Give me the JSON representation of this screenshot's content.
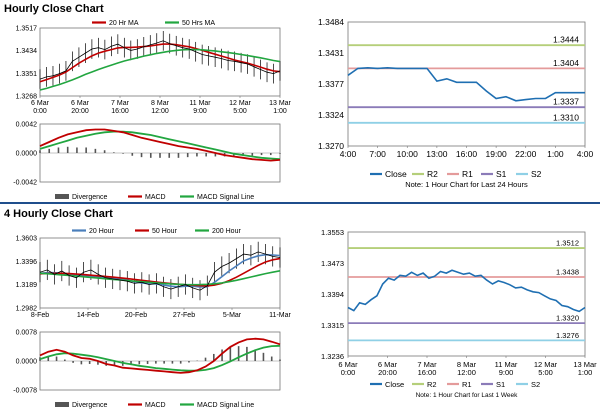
{
  "sections": {
    "hourly_title": "Hourly Close Chart",
    "four_hourly_title": "4 Hourly Close Chart"
  },
  "colors": {
    "price": "#000000",
    "ma_short": "#c00000",
    "ma_long": "#22a640",
    "ma_mid": "#c00000",
    "ma_200": "#22a640",
    "ma_20": "#4a7ebb",
    "macd": "#c00000",
    "signal": "#22a640",
    "divergence": "#555555",
    "close_line": "#1f6fb2",
    "r2": "#b5cf7a",
    "r1": "#e49b9b",
    "s1": "#8b7bb8",
    "s2": "#8fd0e6"
  },
  "chart_data": [
    {
      "id": "hourly_price",
      "type": "line",
      "legend": [
        "20 Hr MA",
        "50 Hrs MA"
      ],
      "yticks": [
        "1.3517",
        "1.3434",
        "1.3351",
        "1.3268"
      ],
      "ylim": [
        1.3268,
        1.3517
      ],
      "xticks": [
        "6 Mar\n0:00",
        "6 Mar\n20:00",
        "7 Mar\n16:00",
        "8 Mar\n12:00",
        "11 Mar\n9:00",
        "12 Mar\n5:00",
        "13 Mar\n1:00"
      ],
      "series": [
        {
          "name": "Close",
          "values": [
            1.333,
            1.3338,
            1.3342,
            1.335,
            1.336,
            1.3395,
            1.341,
            1.3425,
            1.344,
            1.3445,
            1.3438,
            1.345,
            1.3458,
            1.3445,
            1.3435,
            1.344,
            1.3448,
            1.3455,
            1.3462,
            1.347,
            1.346,
            1.3452,
            1.3445,
            1.344,
            1.343,
            1.342,
            1.3415,
            1.341,
            1.3405,
            1.3398,
            1.3395,
            1.339,
            1.3385,
            1.3375,
            1.3365,
            1.3355,
            1.335,
            1.336
          ]
        },
        {
          "name": "20 Hr MA",
          "values": [
            1.332,
            1.3328,
            1.3336,
            1.3345,
            1.3356,
            1.3372,
            1.3388,
            1.3402,
            1.3415,
            1.3425,
            1.3432,
            1.3438,
            1.3444,
            1.3446,
            1.3446,
            1.3447,
            1.3449,
            1.3451,
            1.3455,
            1.3458,
            1.3458,
            1.3456,
            1.3452,
            1.3448,
            1.3442,
            1.3435,
            1.3428,
            1.3421,
            1.3414,
            1.3407,
            1.34,
            1.3394,
            1.3388,
            1.3381,
            1.3374,
            1.3366,
            1.336,
            1.3357
          ]
        },
        {
          "name": "50 Hrs MA",
          "values": [
            1.329,
            1.3296,
            1.3303,
            1.331,
            1.3318,
            1.3327,
            1.3337,
            1.3347,
            1.3356,
            1.3365,
            1.3373,
            1.3381,
            1.3389,
            1.3396,
            1.3402,
            1.3408,
            1.3414,
            1.3419,
            1.3424,
            1.3428,
            1.3432,
            1.3435,
            1.3437,
            1.3438,
            1.3438,
            1.3437,
            1.3435,
            1.3433,
            1.343,
            1.3427,
            1.3424,
            1.342,
            1.3416,
            1.3412,
            1.3408,
            1.3403,
            1.3398,
            1.3394
          ]
        }
      ]
    },
    {
      "id": "hourly_macd",
      "type": "line",
      "legend": [
        "Divergence",
        "MACD",
        "MACD Signal Line"
      ],
      "yticks": [
        "0.0042",
        "0.0000",
        "-0.0042"
      ],
      "ylim": [
        -0.0042,
        0.0042
      ],
      "series": [
        {
          "name": "MACD",
          "values": [
            0.001,
            0.0016,
            0.0022,
            0.0027,
            0.003,
            0.0033,
            0.0034,
            0.0034,
            0.0032,
            0.003,
            0.0026,
            0.0022,
            0.0019,
            0.0016,
            0.0013,
            0.001,
            0.0008,
            0.0006,
            0.0003,
            0.0,
            -0.0003,
            -0.0005,
            -0.0007,
            -0.0009,
            -0.001,
            -0.0011,
            -0.001
          ]
        },
        {
          "name": "MACD Signal Line",
          "values": [
            0.0006,
            0.001,
            0.0014,
            0.0018,
            0.0022,
            0.0025,
            0.0028,
            0.003,
            0.0031,
            0.0031,
            0.003,
            0.0028,
            0.0026,
            0.0023,
            0.002,
            0.0017,
            0.0014,
            0.0011,
            0.0008,
            0.0005,
            0.0002,
            -0.0001,
            -0.0003,
            -0.0005,
            -0.0007,
            -0.0008,
            -0.0009
          ]
        },
        {
          "name": "Divergence",
          "values": [
            0.0004,
            0.0006,
            0.0008,
            0.0009,
            0.0008,
            0.0008,
            0.0006,
            0.0004,
            0.0001,
            -0.0001,
            -0.0004,
            -0.0006,
            -0.0007,
            -0.0007,
            -0.0007,
            -0.0007,
            -0.0006,
            -0.0005,
            -0.0005,
            -0.0005,
            -0.0005,
            -0.0004,
            -0.0004,
            -0.0004,
            -0.0003,
            -0.0003,
            -0.0001
          ]
        }
      ]
    },
    {
      "id": "hourly_24h",
      "type": "line",
      "yticks": [
        "1.3484",
        "1.3431",
        "1.3377",
        "1.3324",
        "1.3270"
      ],
      "ylim": [
        1.327,
        1.3484
      ],
      "xticks": [
        "4:00",
        "7:00",
        "10:00",
        "13:00",
        "16:00",
        "19:00",
        "22:00",
        "1:00",
        "4:00"
      ],
      "levels": [
        {
          "name": "R2",
          "value": 1.3444,
          "label": "1.3444"
        },
        {
          "name": "R1",
          "value": 1.3404,
          "label": "1.3404"
        },
        {
          "name": "S1",
          "value": 1.3337,
          "label": "1.3337"
        },
        {
          "name": "S2",
          "value": 1.331,
          "label": "1.3310"
        }
      ],
      "series": [
        {
          "name": "Close",
          "values": [
            1.3392,
            1.3404,
            1.3405,
            1.3404,
            1.3405,
            1.3404,
            1.3404,
            1.3404,
            1.3404,
            1.3382,
            1.3386,
            1.338,
            1.338,
            1.338,
            1.3365,
            1.3352,
            1.3355,
            1.3348,
            1.335,
            1.3352,
            1.3352,
            1.3362,
            1.3362,
            1.3362,
            1.3362
          ]
        }
      ],
      "legend": [
        "Close",
        "R2",
        "R1",
        "S1",
        "S2"
      ],
      "note": "Note: 1 Hour Chart for Last 24 Hours"
    },
    {
      "id": "four_hourly_price",
      "type": "line",
      "legend": [
        "20 Hour",
        "50 Hour",
        "200 Hour"
      ],
      "yticks": [
        "1.3603",
        "1.3396",
        "1.3189",
        "1.2982"
      ],
      "ylim": [
        1.2982,
        1.3603
      ],
      "xticks": [
        "8-Feb",
        "14-Feb",
        "20-Feb",
        "27-Feb",
        "5-Mar",
        "11-Mar"
      ],
      "series": [
        {
          "name": "Close",
          "values": [
            1.33,
            1.332,
            1.328,
            1.331,
            1.327,
            1.325,
            1.33,
            1.332,
            1.328,
            1.325,
            1.324,
            1.323,
            1.322,
            1.32,
            1.321,
            1.319,
            1.32,
            1.317,
            1.315,
            1.317,
            1.319,
            1.316,
            1.314,
            1.318,
            1.33,
            1.335,
            1.338,
            1.342,
            1.346,
            1.345,
            1.348,
            1.346,
            1.344,
            1.343
          ]
        },
        {
          "name": "20 Hour",
          "values": [
            1.329,
            1.3295,
            1.3295,
            1.329,
            1.328,
            1.327,
            1.327,
            1.3265,
            1.326,
            1.3255,
            1.325,
            1.324,
            1.323,
            1.3215,
            1.3205,
            1.3198,
            1.3195,
            1.3185,
            1.3175,
            1.317,
            1.3175,
            1.3175,
            1.3168,
            1.317,
            1.321,
            1.326,
            1.331,
            1.3355,
            1.34,
            1.3425,
            1.3445,
            1.3455,
            1.3452,
            1.3448
          ]
        },
        {
          "name": "50 Hour",
          "values": [
            1.3285,
            1.3288,
            1.329,
            1.329,
            1.3287,
            1.3283,
            1.3278,
            1.3273,
            1.3268,
            1.3262,
            1.3256,
            1.325,
            1.3243,
            1.3236,
            1.3228,
            1.322,
            1.3213,
            1.3206,
            1.3199,
            1.3193,
            1.3188,
            1.3184,
            1.318,
            1.3178,
            1.3185,
            1.32,
            1.3225,
            1.3255,
            1.329,
            1.3325,
            1.336,
            1.339,
            1.341,
            1.342
          ]
        },
        {
          "name": "200 Hour",
          "values": [
            1.329,
            1.3286,
            1.3281,
            1.3276,
            1.3271,
            1.3265,
            1.3259,
            1.3253,
            1.3247,
            1.3241,
            1.3235,
            1.323,
            1.3225,
            1.322,
            1.3215,
            1.321,
            1.3205,
            1.32,
            1.3196,
            1.3192,
            1.319,
            1.3189,
            1.319,
            1.3192,
            1.3197,
            1.3205,
            1.3215,
            1.3228,
            1.3242,
            1.3257,
            1.3272,
            1.3287,
            1.33,
            1.3312
          ]
        }
      ]
    },
    {
      "id": "four_hourly_macd",
      "type": "line",
      "legend": [
        "Divergence",
        "MACD",
        "MACD Signal Line"
      ],
      "yticks": [
        "0.0078",
        "0.0000",
        "-0.0078"
      ],
      "ylim": [
        -0.0078,
        0.0078
      ],
      "series": [
        {
          "name": "MACD",
          "values": [
            0.0015,
            0.0025,
            0.003,
            0.0025,
            0.0015,
            0.0008,
            0.0006,
            0.0,
            -0.0008,
            -0.0012,
            -0.0018,
            -0.002,
            -0.0022,
            -0.0024,
            -0.0026,
            -0.0028,
            -0.003,
            -0.0032,
            -0.003,
            -0.0025,
            -0.0015,
            0.0,
            0.002,
            0.0038,
            0.005,
            0.0058,
            0.006,
            0.0058,
            0.0052,
            0.0045
          ]
        },
        {
          "name": "MACD Signal Line",
          "values": [
            0.0005,
            0.0012,
            0.0018,
            0.0021,
            0.002,
            0.0017,
            0.0014,
            0.001,
            0.0005,
            0.0,
            -0.0005,
            -0.0009,
            -0.0013,
            -0.0016,
            -0.0019,
            -0.0021,
            -0.0023,
            -0.0025,
            -0.0026,
            -0.0026,
            -0.0024,
            -0.0019,
            -0.0011,
            -0.0001,
            0.001,
            0.002,
            0.0029,
            0.0036,
            0.004,
            0.0041
          ]
        },
        {
          "name": "Divergence",
          "values": [
            0.001,
            0.0013,
            0.0012,
            0.0004,
            -0.0005,
            -0.0009,
            -0.0008,
            -0.001,
            -0.0013,
            -0.0012,
            -0.0013,
            -0.0011,
            -0.0009,
            -0.0008,
            -0.0007,
            -0.0007,
            -0.0007,
            -0.0007,
            -0.0004,
            0.0001,
            0.0009,
            0.0019,
            0.0031,
            0.0039,
            0.004,
            0.0038,
            0.0031,
            0.0022,
            0.0012,
            0.0004
          ]
        }
      ]
    },
    {
      "id": "four_hourly_week",
      "type": "line",
      "yticks": [
        "1.3553",
        "1.3473",
        "1.3394",
        "1.3315",
        "1.3236"
      ],
      "ylim": [
        1.3236,
        1.3553
      ],
      "xticks": [
        "6 Mar\n0:00",
        "6 Mar\n20:00",
        "7 Mar\n16:00",
        "8 Mar\n12:00",
        "11 Mar\n9:00",
        "12 Mar\n5:00",
        "13 Mar\n1:00"
      ],
      "levels": [
        {
          "name": "R2",
          "value": 1.3512,
          "label": "1.3512"
        },
        {
          "name": "R1",
          "value": 1.3438,
          "label": "1.3438"
        },
        {
          "name": "S1",
          "value": 1.332,
          "label": "1.3320"
        },
        {
          "name": "S2",
          "value": 1.3276,
          "label": "1.3276"
        }
      ],
      "series": [
        {
          "name": "Close",
          "values": [
            1.336,
            1.3352,
            1.3372,
            1.3368,
            1.338,
            1.339,
            1.342,
            1.3435,
            1.343,
            1.3442,
            1.344,
            1.345,
            1.3442,
            1.3448,
            1.3435,
            1.344,
            1.3452,
            1.3448,
            1.3455,
            1.345,
            1.3445,
            1.3448,
            1.344,
            1.3442,
            1.343,
            1.342,
            1.3428,
            1.3424,
            1.3418,
            1.341,
            1.3412,
            1.3405,
            1.34,
            1.3398,
            1.339,
            1.3382,
            1.3378,
            1.3365,
            1.3362,
            1.3355,
            1.335,
            1.336
          ]
        }
      ],
      "legend": [
        "Close",
        "R2",
        "R1",
        "S1",
        "S2"
      ],
      "note": "Note: 1 Hour Chart for Last 1 Week"
    }
  ]
}
